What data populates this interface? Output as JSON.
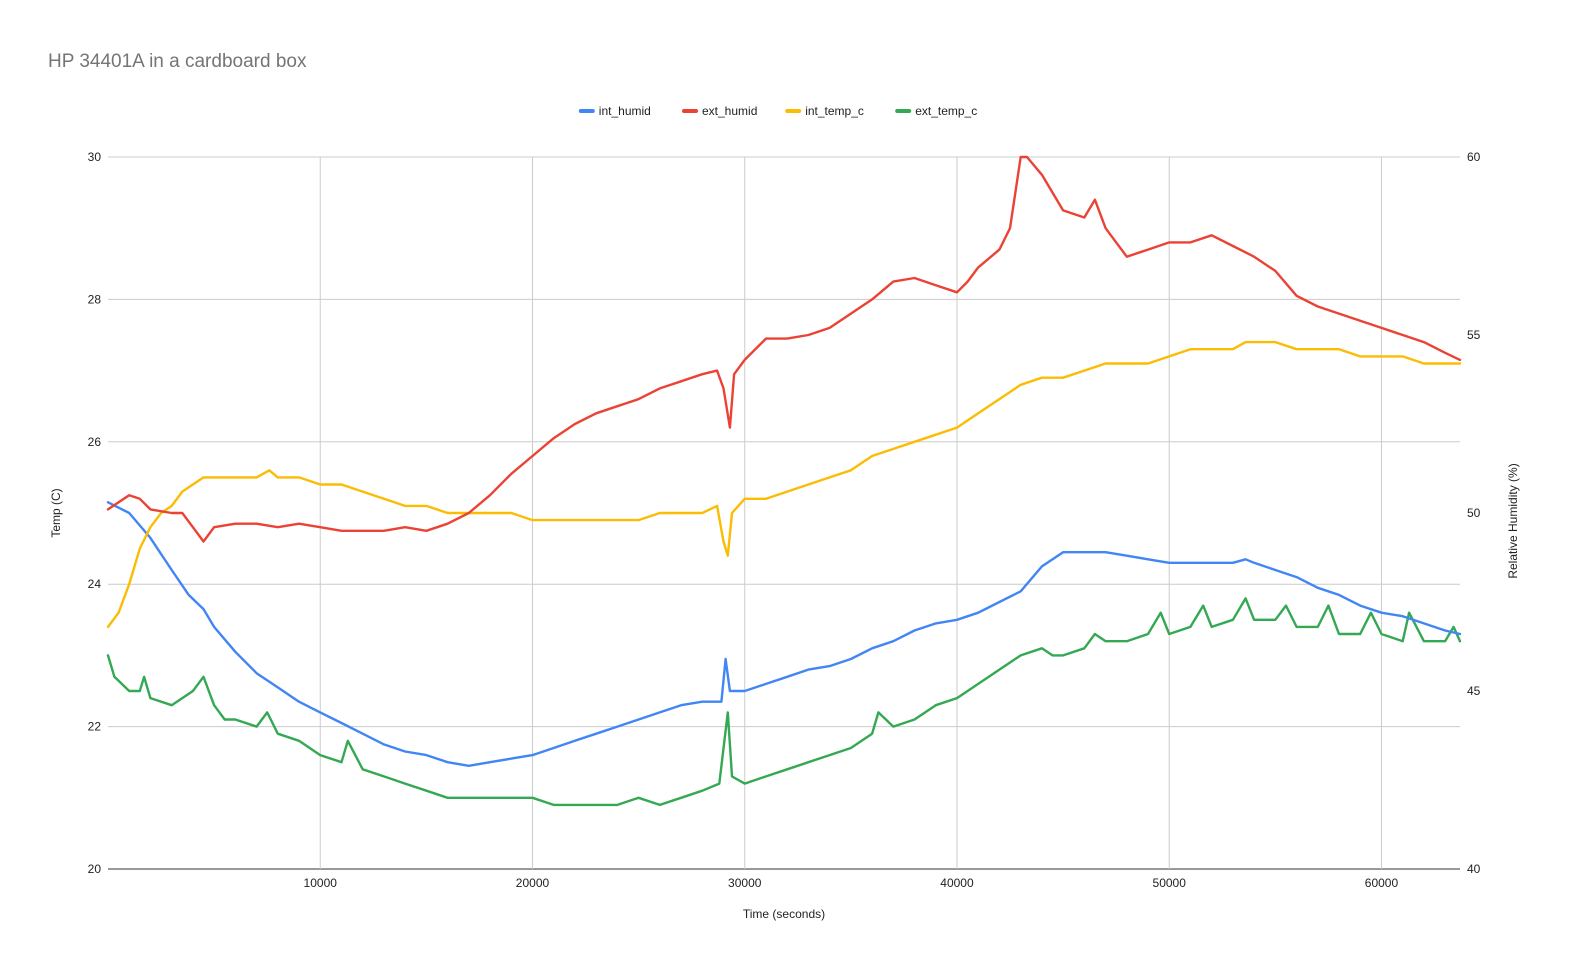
{
  "colors": {
    "int_humid": "#4285F4",
    "ext_humid": "#EA4335",
    "int_temp_c": "#FBBC04",
    "ext_temp_c": "#34A853",
    "grid": "#cccccc",
    "title": "#757575"
  },
  "chart_data": {
    "type": "line",
    "title": "HP 34401A in a cardboard box",
    "xlabel": "Time (seconds)",
    "ylabel_left": "Temp (C)",
    "ylabel_right": "Relative Humidity (%)",
    "xlim": [
      0,
      63700
    ],
    "ylim_left": [
      20,
      30
    ],
    "ylim_right": [
      40,
      60
    ],
    "x_ticks": [
      10000,
      20000,
      30000,
      40000,
      50000,
      60000
    ],
    "x_tick_labels": [
      "10000",
      "20000",
      "30000",
      "40000",
      "50000",
      "60000"
    ],
    "y_left_ticks": [
      20,
      22,
      24,
      26,
      28,
      30
    ],
    "y_left_tick_labels": [
      "20",
      "22",
      "24",
      "26",
      "28",
      "30"
    ],
    "y_right_ticks": [
      40,
      45,
      50,
      55,
      60
    ],
    "y_right_tick_labels": [
      "40",
      "45",
      "50",
      "55",
      "60"
    ],
    "grid": true,
    "legend_position": "top",
    "series": [
      {
        "name": "int_humid",
        "axis": "right",
        "x": [
          0,
          1000,
          2000,
          3000,
          3800,
          4500,
          5000,
          6000,
          7000,
          8000,
          9000,
          10000,
          11000,
          12000,
          13000,
          14000,
          15000,
          16000,
          17000,
          18000,
          19000,
          20000,
          21000,
          22000,
          23000,
          24000,
          25000,
          26000,
          27000,
          28000,
          28900,
          29100,
          29300,
          30000,
          31000,
          32000,
          33000,
          34000,
          35000,
          36000,
          37000,
          38000,
          39000,
          40000,
          41000,
          42000,
          43000,
          44000,
          45000,
          46000,
          47000,
          48000,
          49000,
          50000,
          51000,
          52000,
          53000,
          53600,
          54000,
          55000,
          56000,
          57000,
          58000,
          59000,
          60000,
          61000,
          62000,
          63000,
          63700
        ],
        "y": [
          50.3,
          50.0,
          49.3,
          48.4,
          47.7,
          47.3,
          46.8,
          46.1,
          45.5,
          45.1,
          44.7,
          44.4,
          44.1,
          43.8,
          43.5,
          43.3,
          43.2,
          43.0,
          42.9,
          43.0,
          43.1,
          43.2,
          43.4,
          43.6,
          43.8,
          44.0,
          44.2,
          44.4,
          44.6,
          44.7,
          44.7,
          45.9,
          45.0,
          45.0,
          45.2,
          45.4,
          45.6,
          45.7,
          45.9,
          46.2,
          46.4,
          46.7,
          46.9,
          47.0,
          47.2,
          47.5,
          47.8,
          48.5,
          48.9,
          48.9,
          48.9,
          48.8,
          48.7,
          48.6,
          48.6,
          48.6,
          48.6,
          48.7,
          48.6,
          48.4,
          48.2,
          47.9,
          47.7,
          47.4,
          47.2,
          47.1,
          46.9,
          46.7,
          46.6
        ]
      },
      {
        "name": "ext_humid",
        "axis": "right",
        "x": [
          0,
          500,
          1000,
          1500,
          2000,
          3000,
          3500,
          4000,
          4500,
          5000,
          6000,
          7000,
          8000,
          9000,
          10000,
          11000,
          12000,
          13000,
          14000,
          15000,
          16000,
          17000,
          18000,
          19000,
          20000,
          21000,
          22000,
          23000,
          24000,
          25000,
          26000,
          27000,
          28000,
          28700,
          29000,
          29300,
          29500,
          30000,
          31000,
          32000,
          33000,
          34000,
          35000,
          36000,
          37000,
          38000,
          39000,
          40000,
          40500,
          41000,
          42000,
          42500,
          43000,
          43300,
          44000,
          45000,
          46000,
          46500,
          47000,
          48000,
          49000,
          50000,
          51000,
          52000,
          53000,
          54000,
          55000,
          56000,
          57000,
          58000,
          59000,
          60000,
          61000,
          62000,
          63000,
          63700
        ],
        "y": [
          50.1,
          50.3,
          50.5,
          50.4,
          50.1,
          50.0,
          50.0,
          49.6,
          49.2,
          49.6,
          49.7,
          49.7,
          49.6,
          49.7,
          49.6,
          49.5,
          49.5,
          49.5,
          49.6,
          49.5,
          49.7,
          50.0,
          50.5,
          51.1,
          51.6,
          52.1,
          52.5,
          52.8,
          53.0,
          53.2,
          53.5,
          53.7,
          53.9,
          54.0,
          53.5,
          52.4,
          53.9,
          54.3,
          54.9,
          54.9,
          55.0,
          55.2,
          55.6,
          56.0,
          56.5,
          56.6,
          56.4,
          56.2,
          56.5,
          56.9,
          57.4,
          58.0,
          60.0,
          60.5,
          59.5,
          58.5,
          58.3,
          58.8,
          58.0,
          57.2,
          57.4,
          57.6,
          57.6,
          57.8,
          57.5,
          57.2,
          56.8,
          56.1,
          55.8,
          55.6,
          55.4,
          55.2,
          55.0,
          54.8,
          54.5,
          54.3
        ]
      },
      {
        "name": "int_temp_c",
        "axis": "left",
        "x": [
          0,
          500,
          1000,
          1500,
          2000,
          2500,
          3000,
          3500,
          4000,
          4500,
          5000,
          6000,
          7000,
          7600,
          8000,
          9000,
          10000,
          11000,
          12000,
          13000,
          14000,
          15000,
          16000,
          17000,
          18000,
          19000,
          20000,
          21000,
          22000,
          23000,
          24000,
          25000,
          26000,
          27000,
          28000,
          28700,
          29000,
          29200,
          29400,
          30000,
          31000,
          32000,
          33000,
          34000,
          35000,
          36000,
          37000,
          38000,
          39000,
          40000,
          41000,
          42000,
          43000,
          44000,
          45000,
          46000,
          47000,
          48000,
          49000,
          50000,
          51000,
          52000,
          53000,
          53600,
          54000,
          55000,
          56000,
          57000,
          58000,
          59000,
          60000,
          61000,
          62000,
          63000,
          63700
        ],
        "y": [
          23.4,
          23.6,
          24.0,
          24.5,
          24.8,
          25.0,
          25.1,
          25.3,
          25.4,
          25.5,
          25.5,
          25.5,
          25.5,
          25.6,
          25.5,
          25.5,
          25.4,
          25.4,
          25.3,
          25.2,
          25.1,
          25.1,
          25.0,
          25.0,
          25.0,
          25.0,
          24.9,
          24.9,
          24.9,
          24.9,
          24.9,
          24.9,
          25.0,
          25.0,
          25.0,
          25.1,
          24.6,
          24.4,
          25.0,
          25.2,
          25.2,
          25.3,
          25.4,
          25.5,
          25.6,
          25.8,
          25.9,
          26.0,
          26.1,
          26.2,
          26.4,
          26.6,
          26.8,
          26.9,
          26.9,
          27.0,
          27.1,
          27.1,
          27.1,
          27.2,
          27.3,
          27.3,
          27.3,
          27.4,
          27.4,
          27.4,
          27.3,
          27.3,
          27.3,
          27.2,
          27.2,
          27.2,
          27.1,
          27.1,
          27.1
        ]
      },
      {
        "name": "ext_temp_c",
        "axis": "left",
        "x": [
          0,
          300,
          1000,
          1500,
          1700,
          2000,
          3000,
          3500,
          4000,
          4500,
          5000,
          5500,
          6000,
          7000,
          7500,
          8000,
          9000,
          10000,
          11000,
          11300,
          12000,
          13000,
          14000,
          15000,
          16000,
          17000,
          18000,
          19000,
          20000,
          21000,
          22000,
          23000,
          24000,
          25000,
          26000,
          27000,
          28000,
          28800,
          29200,
          29400,
          30000,
          31000,
          32000,
          33000,
          34000,
          35000,
          36000,
          36300,
          37000,
          38000,
          39000,
          40000,
          41000,
          42000,
          43000,
          44000,
          44500,
          45000,
          46000,
          46500,
          47000,
          48000,
          49000,
          49600,
          50000,
          51000,
          51600,
          52000,
          53000,
          53600,
          54000,
          55000,
          55500,
          56000,
          57000,
          57500,
          58000,
          59000,
          59500,
          60000,
          61000,
          61300,
          62000,
          63000,
          63400,
          63700
        ],
        "y": [
          23.0,
          22.7,
          22.5,
          22.5,
          22.7,
          22.4,
          22.3,
          22.4,
          22.5,
          22.7,
          22.3,
          22.1,
          22.1,
          22.0,
          22.2,
          21.9,
          21.8,
          21.6,
          21.5,
          21.8,
          21.4,
          21.3,
          21.2,
          21.1,
          21.0,
          21.0,
          21.0,
          21.0,
          21.0,
          20.9,
          20.9,
          20.9,
          20.9,
          21.0,
          20.9,
          21.0,
          21.1,
          21.2,
          22.2,
          21.3,
          21.2,
          21.3,
          21.4,
          21.5,
          21.6,
          21.7,
          21.9,
          22.2,
          22.0,
          22.1,
          22.3,
          22.4,
          22.6,
          22.8,
          23.0,
          23.1,
          23.0,
          23.0,
          23.1,
          23.3,
          23.2,
          23.2,
          23.3,
          23.6,
          23.3,
          23.4,
          23.7,
          23.4,
          23.5,
          23.8,
          23.5,
          23.5,
          23.7,
          23.4,
          23.4,
          23.7,
          23.3,
          23.3,
          23.6,
          23.3,
          23.2,
          23.6,
          23.2,
          23.2,
          23.4,
          23.2
        ]
      }
    ]
  }
}
